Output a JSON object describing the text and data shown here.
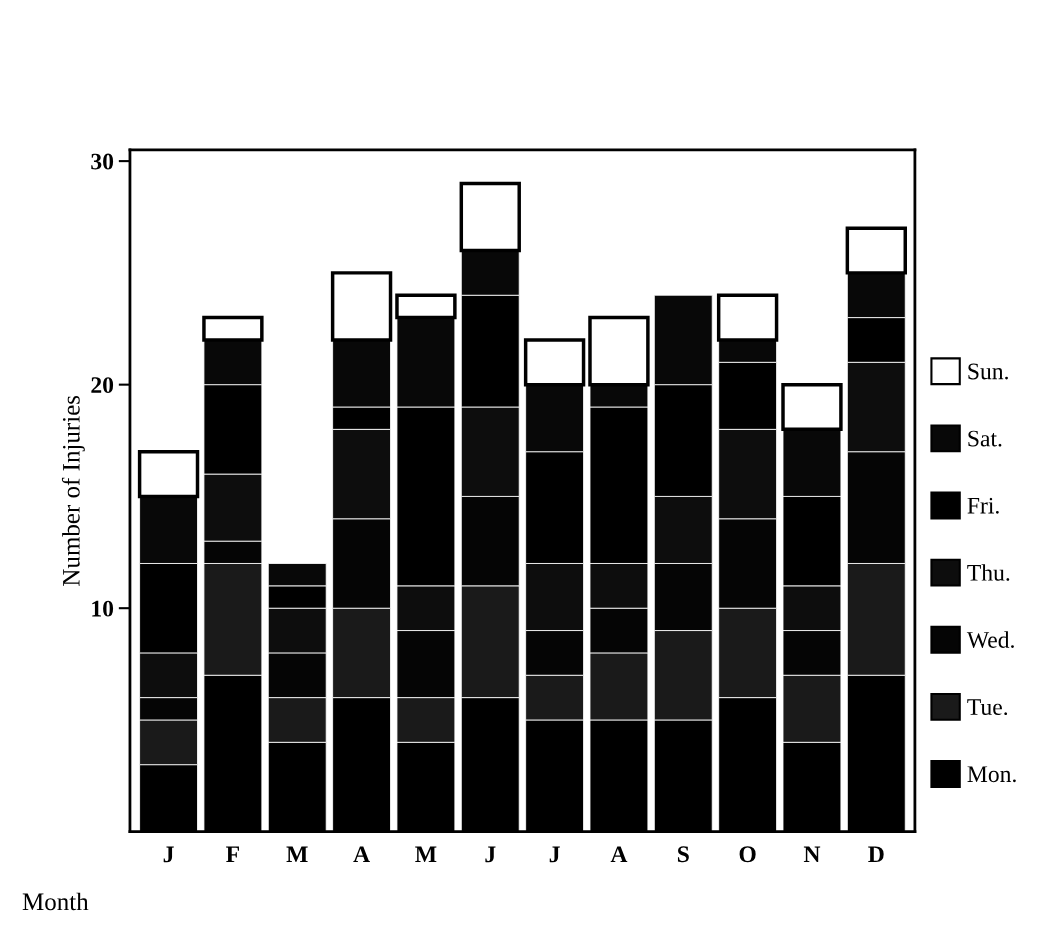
{
  "chart_data": {
    "type": "bar",
    "stacked": true,
    "xlabel": "Month",
    "ylabel": "Number of Injuries",
    "categories": [
      "J",
      "F",
      "M",
      "A",
      "M",
      "J",
      "J",
      "A",
      "S",
      "O",
      "N",
      "D"
    ],
    "series": [
      {
        "name": "Mon.",
        "color": "#000000",
        "values": [
          3,
          7,
          4,
          6,
          4,
          6,
          5,
          5,
          5,
          6,
          4,
          7
        ]
      },
      {
        "name": "Tue.",
        "color": "#1a1a1a",
        "values": [
          2,
          5,
          2,
          4,
          2,
          5,
          2,
          3,
          4,
          4,
          3,
          5
        ]
      },
      {
        "name": "Wed.",
        "color": "#050505",
        "values": [
          1,
          1,
          2,
          4,
          3,
          4,
          2,
          2,
          3,
          4,
          2,
          5
        ]
      },
      {
        "name": "Thu.",
        "color": "#0d0d0d",
        "values": [
          2,
          3,
          2,
          4,
          2,
          4,
          3,
          2,
          3,
          4,
          2,
          4
        ]
      },
      {
        "name": "Fri.",
        "color": "#000000",
        "values": [
          4,
          4,
          1,
          1,
          8,
          5,
          5,
          7,
          5,
          3,
          4,
          2
        ]
      },
      {
        "name": "Sat.",
        "color": "#080808",
        "values": [
          3,
          2,
          1,
          3,
          4,
          2,
          3,
          1,
          4,
          1,
          3,
          2
        ]
      },
      {
        "name": "Sun.",
        "color": "#ffffff",
        "values": [
          2,
          1,
          null,
          3,
          1,
          3,
          2,
          3,
          null,
          2,
          2,
          2
        ]
      }
    ],
    "ylim": [
      0,
      30.5
    ],
    "yticks": [
      10,
      20,
      30
    ],
    "grid": false,
    "legend": "right"
  }
}
